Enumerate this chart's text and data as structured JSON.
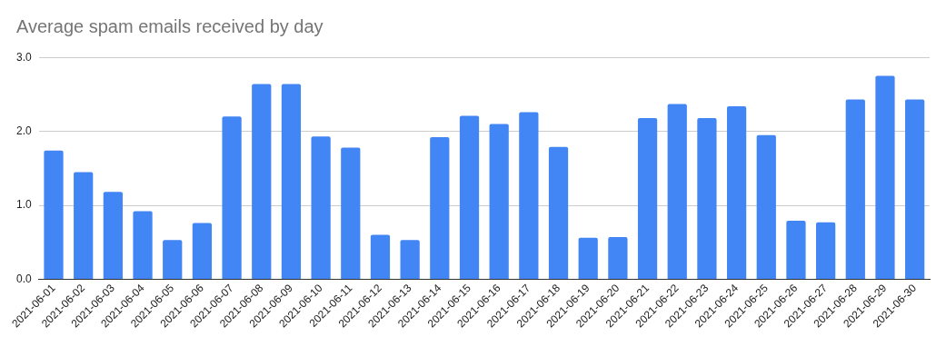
{
  "chart_data": {
    "type": "bar",
    "title": "Average spam emails received by day",
    "categories": [
      "2021-06-01",
      "2021-06-02",
      "2021-06-03",
      "2021-06-04",
      "2021-06-05",
      "2021-06-06",
      "2021-06-07",
      "2021-06-08",
      "2021-06-09",
      "2021-06-10",
      "2021-06-11",
      "2021-06-12",
      "2021-06-13",
      "2021-06-14",
      "2021-06-15",
      "2021-06-16",
      "2021-06-17",
      "2021-06-18",
      "2021-06-19",
      "2021-06-20",
      "2021-06-21",
      "2021-06-22",
      "2021-06-23",
      "2021-06-24",
      "2021-06-25",
      "2021-06-26",
      "2021-06-27",
      "2021-06-28",
      "2021-06-29",
      "2021-06-30"
    ],
    "values": [
      1.74,
      1.45,
      1.18,
      0.92,
      0.53,
      0.76,
      2.2,
      2.64,
      2.64,
      1.93,
      1.78,
      0.6,
      0.53,
      1.92,
      2.21,
      2.1,
      2.26,
      1.79,
      0.56,
      0.57,
      2.18,
      2.37,
      2.18,
      2.34,
      1.95,
      0.79,
      0.77,
      2.43,
      2.75,
      2.43
    ],
    "color": "#4285f4",
    "ylim": [
      0,
      3
    ],
    "yticks": [
      {
        "value": 0,
        "label": "0.0"
      },
      {
        "value": 1,
        "label": "1.0"
      },
      {
        "value": 2,
        "label": "2.0"
      },
      {
        "value": 3,
        "label": "3.0"
      }
    ],
    "grid": "y",
    "legend": false
  }
}
